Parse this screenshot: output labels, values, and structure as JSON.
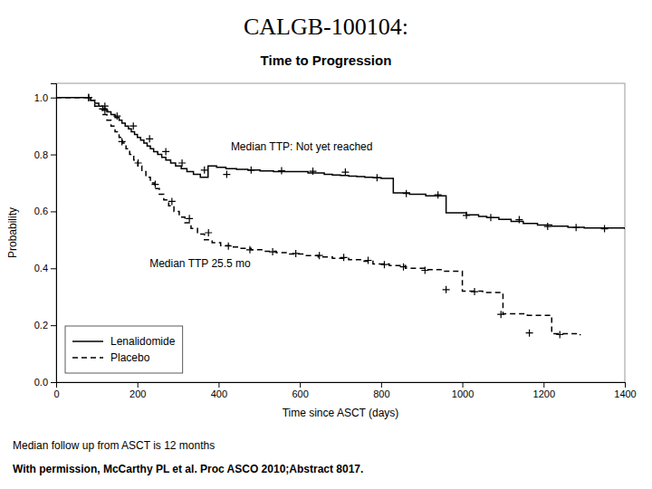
{
  "chart_data": {
    "type": "step",
    "title": "CALGB-100104:",
    "subtitle": "Time to Progression",
    "xlabel": "Time since ASCT (days)",
    "ylabel": "Probability",
    "xlim": [
      0,
      1400
    ],
    "ylim": [
      0.0,
      1.05
    ],
    "xticks": [
      0,
      200,
      400,
      600,
      800,
      1000,
      1200,
      1400
    ],
    "yticks": [
      {
        "value": 0.0,
        "label": "0.0"
      },
      0.2,
      0.4,
      0.6,
      0.8,
      {
        "value": 1.0,
        "label": "1.0"
      }
    ],
    "grid": false,
    "legend": "lower left",
    "annotations": [
      {
        "text": "Median TTP:  Not yet reached",
        "x": 430,
        "y": 0.815
      },
      {
        "text": "Median TTP 25.5 mo",
        "x": 230,
        "y": 0.405
      }
    ],
    "footnotes": [
      "Median follow up from ASCT is 12 months",
      "With permission, McCarthy PL et al. Proc ASCO 2010;Abstract 8017."
    ],
    "series": [
      {
        "name": "Lenalidomide",
        "color": "black",
        "line_style": "solid",
        "marker": "plus",
        "x": [
          0,
          75,
          85,
          95,
          105,
          115,
          125,
          135,
          145,
          155,
          162,
          170,
          178,
          185,
          193,
          200,
          208,
          216,
          224,
          232,
          240,
          250,
          260,
          270,
          282,
          294,
          308,
          322,
          338,
          355,
          374,
          395,
          418,
          444,
          472,
          502,
          535,
          568,
          600,
          620,
          640,
          660,
          680,
          700,
          720,
          740,
          760,
          780,
          800,
          830,
          870,
          910,
          960,
          1010,
          1040,
          1060,
          1090,
          1120,
          1150,
          1185,
          1220,
          1260,
          1300,
          1400
        ],
        "values": [
          1.0,
          1.0,
          0.99,
          0.98,
          0.97,
          0.96,
          0.95,
          0.94,
          0.93,
          0.92,
          0.91,
          0.9,
          0.89,
          0.88,
          0.87,
          0.86,
          0.85,
          0.84,
          0.83,
          0.82,
          0.81,
          0.8,
          0.79,
          0.78,
          0.77,
          0.76,
          0.75,
          0.74,
          0.73,
          0.72,
          0.76,
          0.755,
          0.75,
          0.748,
          0.745,
          0.742,
          0.74,
          0.74,
          0.74,
          0.735,
          0.735,
          0.73,
          0.728,
          0.726,
          0.724,
          0.722,
          0.72,
          0.718,
          0.716,
          0.665,
          0.66,
          0.655,
          0.595,
          0.588,
          0.582,
          0.578,
          0.572,
          0.565,
          0.558,
          0.552,
          0.548,
          0.544,
          0.542,
          0.538
        ],
        "censor_x": [
          80,
          120,
          150,
          190,
          230,
          270,
          310,
          365,
          420,
          480,
          555,
          632,
          712,
          790,
          862,
          940,
          1010,
          1070,
          1140,
          1210,
          1280,
          1350
        ],
        "censor_y": [
          1.0,
          0.97,
          0.935,
          0.9,
          0.855,
          0.81,
          0.77,
          0.745,
          0.73,
          0.745,
          0.743,
          0.741,
          0.738,
          0.718,
          0.663,
          0.658,
          0.586,
          0.578,
          0.571,
          0.547,
          0.543,
          0.539
        ]
      },
      {
        "name": "Placebo",
        "color": "black",
        "line_style": "dashed",
        "marker": "plus",
        "x": [
          0,
          75,
          85,
          95,
          105,
          115,
          125,
          135,
          145,
          155,
          163,
          172,
          181,
          191,
          201,
          211,
          221,
          232,
          243,
          254,
          265,
          277,
          290,
          303,
          317,
          332,
          348,
          365,
          384,
          405,
          428,
          453,
          480,
          510,
          542,
          575,
          610,
          645,
          680,
          720,
          758,
          780,
          800,
          820,
          840,
          860,
          880,
          910,
          950,
          1000,
          1050,
          1100,
          1160,
          1220,
          1290
        ],
        "values": [
          1.0,
          1.0,
          0.99,
          0.97,
          0.96,
          0.94,
          0.92,
          0.9,
          0.88,
          0.86,
          0.84,
          0.82,
          0.8,
          0.78,
          0.76,
          0.74,
          0.72,
          0.7,
          0.68,
          0.66,
          0.64,
          0.62,
          0.6,
          0.58,
          0.56,
          0.54,
          0.52,
          0.5,
          0.49,
          0.48,
          0.475,
          0.47,
          0.465,
          0.46,
          0.455,
          0.45,
          0.445,
          0.44,
          0.435,
          0.43,
          0.425,
          0.415,
          0.415,
          0.41,
          0.41,
          0.4,
          0.4,
          0.395,
          0.39,
          0.32,
          0.315,
          0.24,
          0.235,
          0.17,
          0.165
        ],
        "censor_x": [
          80,
          120,
          162,
          202,
          244,
          285,
          328,
          375,
          424,
          477,
          533,
          590,
          648,
          708,
          768,
          808,
          855,
          908,
          960,
          1030,
          1095,
          1165,
          1240
        ],
        "censor_y": [
          1.0,
          0.955,
          0.845,
          0.77,
          0.695,
          0.635,
          0.575,
          0.525,
          0.478,
          0.465,
          0.458,
          0.452,
          0.445,
          0.438,
          0.428,
          0.413,
          0.405,
          0.393,
          0.325,
          0.318,
          0.238,
          0.173,
          0.167
        ]
      }
    ]
  }
}
